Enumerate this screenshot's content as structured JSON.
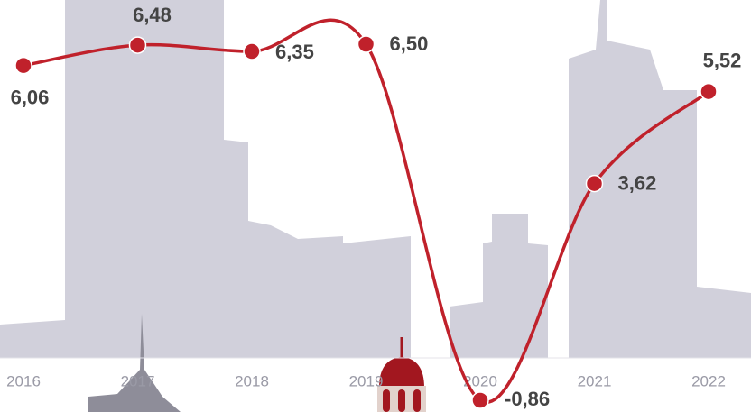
{
  "chart_data": {
    "type": "line",
    "categories": [
      "2016",
      "2017",
      "2018",
      "2019",
      "2020",
      "2021",
      "2022"
    ],
    "series": [
      {
        "color": "#c0212b",
        "values": [
          6.06,
          6.48,
          6.35,
          6.5,
          -0.86,
          3.62,
          5.52
        ],
        "value_labels": [
          "6,06",
          "6,48",
          "6,35",
          "6,50",
          "-0,86",
          "3,62",
          "5,52"
        ]
      }
    ]
  }
}
